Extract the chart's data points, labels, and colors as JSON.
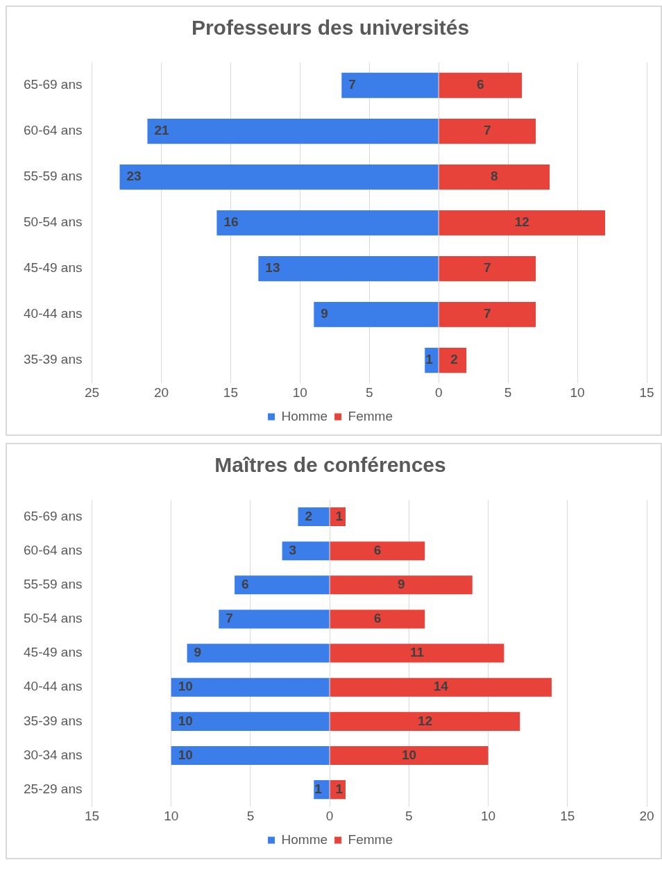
{
  "chart_data": [
    {
      "type": "bar",
      "title": "Professeurs des universités",
      "orientation": "horizontal",
      "categories": [
        "65-69 ans",
        "60-64 ans",
        "55-59 ans",
        "50-54 ans",
        "45-49 ans",
        "40-44 ans",
        "35-39 ans"
      ],
      "series": [
        {
          "name": "Homme",
          "color": "#3b7de9",
          "values": [
            7,
            21,
            23,
            16,
            13,
            9,
            1
          ],
          "base": [
            -7,
            -21,
            -23,
            -16,
            -13,
            -9,
            -1
          ]
        },
        {
          "name": "Femme",
          "color": "#e8433a",
          "values": [
            6,
            7,
            8,
            12,
            7,
            7,
            2
          ]
        }
      ],
      "data_labels": true,
      "xlim": [
        -25,
        15
      ],
      "xticks": [
        {
          "value": -25,
          "label": "25"
        },
        {
          "value": -20,
          "label": "20"
        },
        {
          "value": -15,
          "label": "15"
        },
        {
          "value": -10,
          "label": "10"
        },
        {
          "value": -5,
          "label": "5"
        },
        0,
        5,
        10,
        15
      ],
      "grid": "x",
      "legend": "bottom"
    },
    {
      "type": "bar",
      "title": "Maîtres de conférences",
      "orientation": "horizontal",
      "categories": [
        "65-69 ans",
        "60-64 ans",
        "55-59 ans",
        "50-54 ans",
        "45-49 ans",
        "40-44 ans",
        "35-39 ans",
        "30-34 ans",
        "25-29 ans"
      ],
      "series": [
        {
          "name": "Homme",
          "color": "#3b7de9",
          "values": [
            2,
            3,
            6,
            7,
            9,
            10,
            10,
            10,
            1
          ],
          "base": [
            -2,
            -3,
            -6,
            -7,
            -9,
            -10,
            -10,
            -10,
            -1
          ]
        },
        {
          "name": "Femme",
          "color": "#e8433a",
          "values": [
            1,
            6,
            9,
            6,
            11,
            14,
            12,
            10,
            1
          ]
        }
      ],
      "data_labels": true,
      "xlim": [
        -15,
        20
      ],
      "xticks": [
        {
          "value": -15,
          "label": "15"
        },
        {
          "value": -10,
          "label": "10"
        },
        {
          "value": -5,
          "label": "5"
        },
        0,
        5,
        10,
        15,
        20
      ],
      "grid": "x",
      "legend": "bottom"
    }
  ]
}
